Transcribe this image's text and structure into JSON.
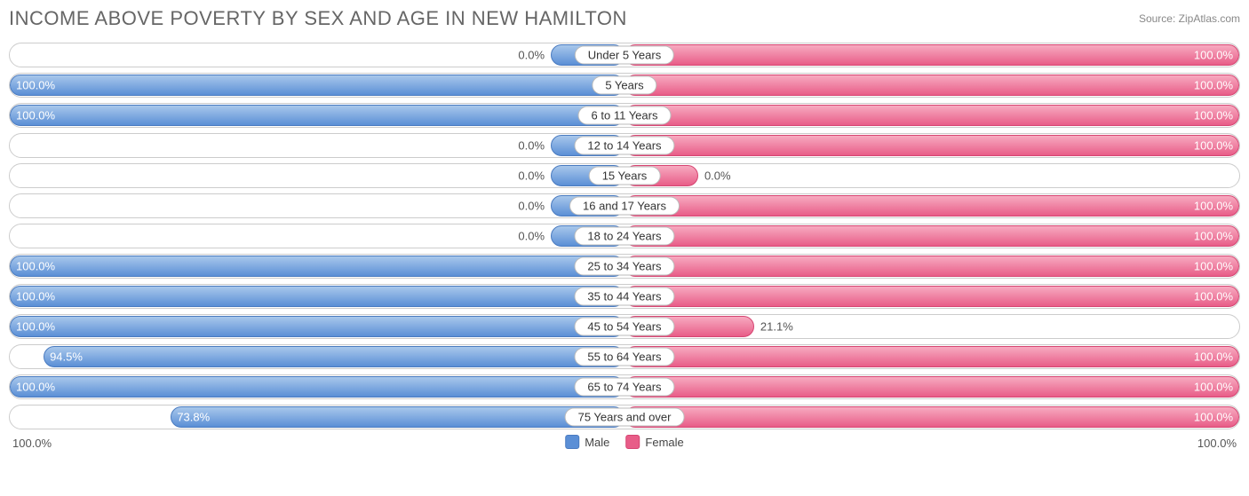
{
  "chart": {
    "type": "diverging-bar",
    "title": "INCOME ABOVE POVERTY BY SEX AND AGE IN NEW HAMILTON",
    "source": "Source: ZipAtlas.com",
    "title_color": "#666666",
    "title_fontsize": 22,
    "source_color": "#888888",
    "background": "#ffffff",
    "row_border_color": "#cccccc",
    "label_fontsize": 13,
    "male": {
      "fill_light": "#a8c7eb",
      "fill_dark": "#5b8fd6",
      "border": "#4a7bc0",
      "label": "Male"
    },
    "female": {
      "fill_light": "#f7aac0",
      "fill_dark": "#e85d88",
      "border": "#d64572",
      "label": "Female"
    },
    "axis": {
      "left": "100.0%",
      "right": "100.0%"
    },
    "min_bar_pct": 12,
    "rows": [
      {
        "age": "Under 5 Years",
        "male": 0.0,
        "female": 100.0
      },
      {
        "age": "5 Years",
        "male": 100.0,
        "female": 100.0
      },
      {
        "age": "6 to 11 Years",
        "male": 100.0,
        "female": 100.0
      },
      {
        "age": "12 to 14 Years",
        "male": 0.0,
        "female": 100.0
      },
      {
        "age": "15 Years",
        "male": 0.0,
        "female": 0.0
      },
      {
        "age": "16 and 17 Years",
        "male": 0.0,
        "female": 100.0
      },
      {
        "age": "18 to 24 Years",
        "male": 0.0,
        "female": 100.0
      },
      {
        "age": "25 to 34 Years",
        "male": 100.0,
        "female": 100.0
      },
      {
        "age": "35 to 44 Years",
        "male": 100.0,
        "female": 100.0
      },
      {
        "age": "45 to 54 Years",
        "male": 100.0,
        "female": 21.1
      },
      {
        "age": "55 to 64 Years",
        "male": 94.5,
        "female": 100.0
      },
      {
        "age": "65 to 74 Years",
        "male": 100.0,
        "female": 100.0
      },
      {
        "age": "75 Years and over",
        "male": 73.8,
        "female": 100.0
      }
    ]
  }
}
